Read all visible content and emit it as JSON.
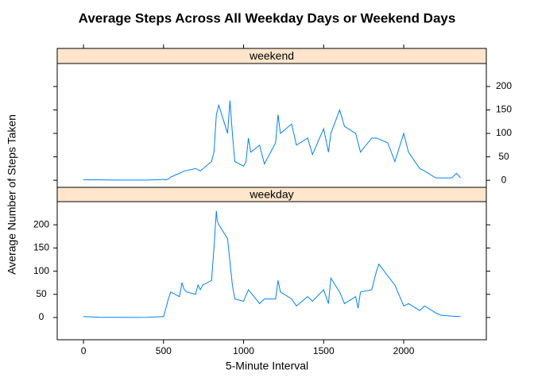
{
  "chart_data": {
    "type": "line",
    "title": "Average Steps Across All Weekday Days or Weekend Days",
    "xlabel": "5-Minute Interval",
    "ylabel": "Average Number of Steps Taken",
    "xlim": [
      -164,
      2516
    ],
    "xticks": [
      0,
      500,
      1000,
      1500,
      2000
    ],
    "color": "#0080ff",
    "strip_color": "#ffe5cc",
    "panels": [
      {
        "name": "weekend",
        "ylim": [
          -15,
          249
        ],
        "yticks": [
          0,
          50,
          100,
          150,
          200
        ],
        "x": [
          0,
          100,
          200,
          300,
          400,
          500,
          515,
          530,
          545,
          600,
          630,
          700,
          730,
          800,
          815,
          830,
          845,
          900,
          915,
          930,
          945,
          1000,
          1015,
          1030,
          1045,
          1100,
          1130,
          1200,
          1215,
          1230,
          1300,
          1330,
          1400,
          1430,
          1500,
          1530,
          1545,
          1600,
          1630,
          1700,
          1730,
          1800,
          1830,
          1900,
          1945,
          2000,
          2030,
          2100,
          2130,
          2200,
          2300,
          2330,
          2355
        ],
        "values": [
          1,
          1,
          0.5,
          0.5,
          0.5,
          2,
          1,
          3,
          7,
          15,
          20,
          25,
          20,
          40,
          60,
          140,
          160,
          100,
          170,
          100,
          40,
          30,
          40,
          90,
          60,
          75,
          35,
          80,
          140,
          100,
          120,
          75,
          90,
          55,
          110,
          60,
          100,
          150,
          115,
          100,
          60,
          90,
          90,
          80,
          40,
          100,
          60,
          25,
          20,
          5,
          5,
          15,
          5
        ]
      },
      {
        "name": "weekday",
        "ylim": [
          -48,
          250
        ],
        "yticks": [
          0,
          50,
          100,
          150,
          200
        ],
        "x": [
          0,
          100,
          200,
          300,
          400,
          500,
          515,
          530,
          545,
          600,
          615,
          630,
          645,
          700,
          715,
          730,
          745,
          800,
          815,
          830,
          835,
          845,
          900,
          915,
          930,
          945,
          1000,
          1030,
          1100,
          1130,
          1200,
          1215,
          1230,
          1300,
          1330,
          1400,
          1430,
          1500,
          1530,
          1545,
          1600,
          1630,
          1700,
          1715,
          1730,
          1800,
          1830,
          1845,
          1900,
          1945,
          2000,
          2030,
          2100,
          2130,
          2200,
          2230,
          2300,
          2355
        ],
        "values": [
          2,
          0.5,
          0.3,
          0.2,
          0.3,
          2,
          20,
          40,
          55,
          45,
          75,
          60,
          55,
          50,
          70,
          60,
          70,
          80,
          150,
          230,
          210,
          200,
          170,
          120,
          70,
          40,
          35,
          60,
          30,
          40,
          40,
          80,
          55,
          40,
          25,
          45,
          35,
          60,
          30,
          85,
          55,
          30,
          45,
          20,
          55,
          60,
          100,
          115,
          90,
          70,
          25,
          30,
          15,
          25,
          10,
          5,
          3,
          2
        ]
      }
    ]
  }
}
